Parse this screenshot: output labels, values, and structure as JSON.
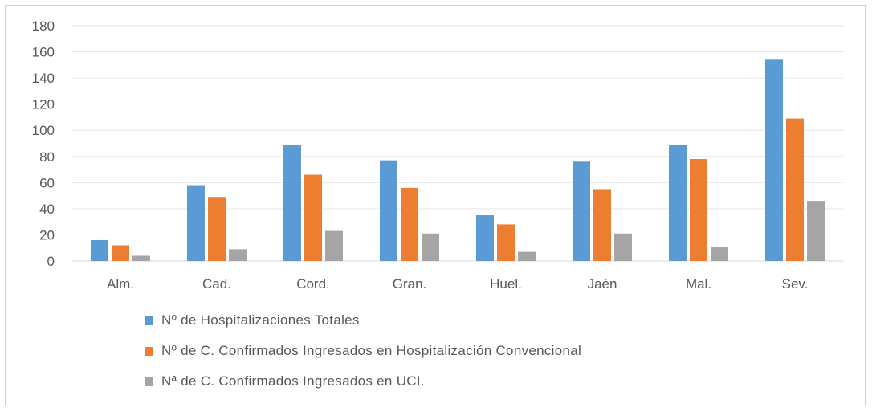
{
  "chart_data": {
    "type": "bar",
    "categories": [
      "Alm.",
      "Cad.",
      "Cord.",
      "Gran.",
      "Huel.",
      "Jaén",
      "Mal.",
      "Sev."
    ],
    "series": [
      {
        "name": "Nº de Hospitalizaciones Totales",
        "color": "#5b9bd5",
        "values": [
          16,
          58,
          89,
          77,
          35,
          76,
          89,
          154
        ]
      },
      {
        "name": "Nº de C. Confirmados Ingresados en Hospitalización Convencional",
        "color": "#ed7d31",
        "values": [
          12,
          49,
          66,
          56,
          28,
          55,
          78,
          109
        ]
      },
      {
        "name": "Nª de C. Confirmados Ingresados en UCI.",
        "color": "#a5a5a5",
        "values": [
          4,
          9,
          23,
          21,
          7,
          21,
          11,
          46
        ]
      }
    ],
    "yticks": [
      "0",
      "20",
      "40",
      "60",
      "80",
      "100",
      "120",
      "140",
      "160",
      "180"
    ],
    "ylim": [
      0,
      180
    ],
    "grid": true,
    "legend_position": "bottom"
  }
}
